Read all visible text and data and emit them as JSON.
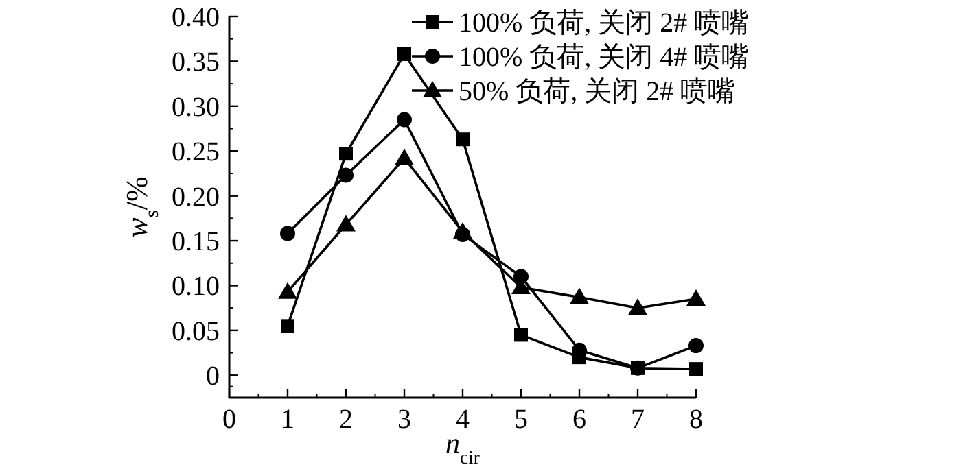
{
  "chart_data": {
    "type": "line",
    "xlabel": "n$_{cir}$",
    "ylabel": "w$_{s}$/%",
    "x": [
      1,
      2,
      3,
      4,
      5,
      6,
      7,
      8
    ],
    "xlim": [
      0,
      8
    ],
    "xticks": [
      0,
      1,
      2,
      3,
      4,
      5,
      6,
      7,
      8
    ],
    "ylim": [
      -0.025,
      0.4
    ],
    "yticks": [
      {
        "value": 0,
        "label": "0"
      },
      {
        "value": 0.05,
        "label": "0.05"
      },
      {
        "value": 0.1,
        "label": "0.10"
      },
      {
        "value": 0.15,
        "label": "0.15"
      },
      {
        "value": 0.2,
        "label": "0.20"
      },
      {
        "value": 0.25,
        "label": "0.25"
      },
      {
        "value": 0.3,
        "label": "0.30"
      },
      {
        "value": 0.35,
        "label": "0.35"
      },
      {
        "value": 0.4,
        "label": "0.40"
      }
    ],
    "grid": false,
    "legend": "top right",
    "line_style": "solid",
    "series": [
      {
        "name": "100% 负荷, 关闭 2# 喷嘴",
        "color": "#000000",
        "marker": "square",
        "values": [
          0.055,
          0.247,
          0.358,
          0.263,
          0.045,
          0.02,
          0.008,
          0.007
        ]
      },
      {
        "name": "100% 负荷, 关闭 4# 喷嘴",
        "color": "#000000",
        "marker": "circle",
        "values": [
          0.158,
          0.223,
          0.285,
          0.157,
          0.11,
          0.028,
          0.008,
          0.033
        ]
      },
      {
        "name": "50% 负荷, 关闭 2# 喷嘴",
        "color": "#000000",
        "marker": "triangle",
        "values": [
          0.093,
          0.168,
          0.242,
          0.16,
          0.098,
          0.087,
          0.075,
          0.085
        ]
      }
    ]
  }
}
